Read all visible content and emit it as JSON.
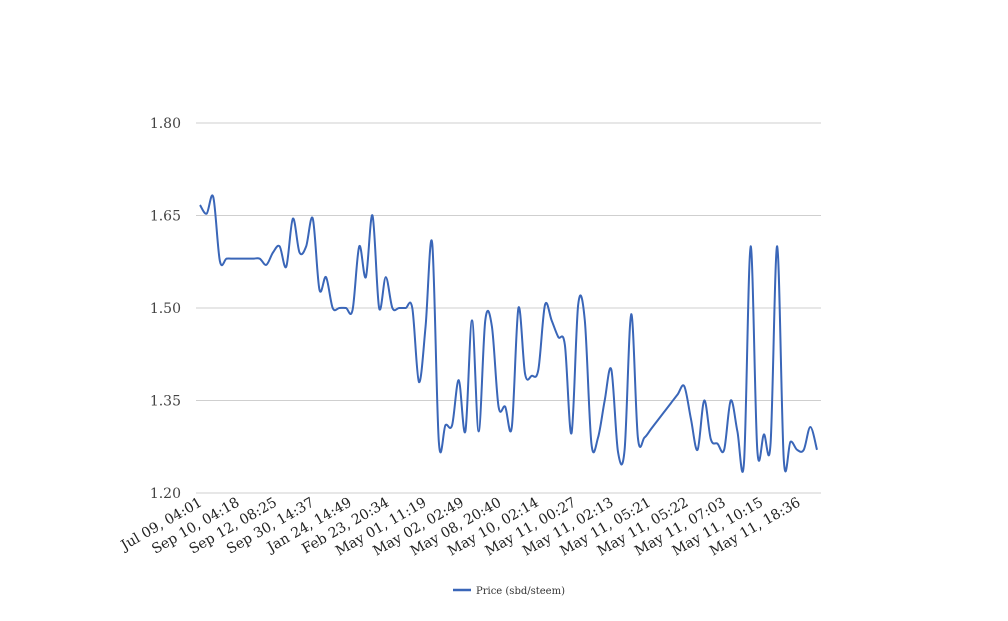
{
  "chart_data": {
    "type": "line",
    "title": "",
    "xlabel": "",
    "ylabel": "",
    "ylim": [
      1.2,
      1.8
    ],
    "yticks": [
      "1.20",
      "1.35",
      "1.50",
      "1.65",
      "1.80"
    ],
    "grid": true,
    "legend_position": "bottom",
    "x_tick_labels": [
      "Jul 09, 04:01",
      "Sep 10, 04:18",
      "Sep 12, 08:25",
      "Sep 30, 14:37",
      "Jan 24, 14:49",
      "Feb 23, 20:34",
      "May 01, 11:19",
      "May 02, 02:49",
      "May 08, 20:40",
      "May 10, 02:14",
      "May 11, 00:27",
      "May 11, 02:13",
      "May 11, 05:21",
      "May 11, 05:22",
      "May 11, 07:03",
      "May 11, 10:15",
      "May 11, 18:36"
    ],
    "series": [
      {
        "name": "Price (sbd/steem)",
        "color": "#3a66b8",
        "values": [
          1.667,
          1.653,
          1.68,
          1.576,
          1.58,
          1.58,
          1.58,
          1.58,
          1.58,
          1.58,
          1.57,
          1.59,
          1.6,
          1.567,
          1.645,
          1.59,
          1.6,
          1.645,
          1.53,
          1.55,
          1.5,
          1.5,
          1.5,
          1.497,
          1.6,
          1.55,
          1.65,
          1.5,
          1.55,
          1.5,
          1.5,
          1.5,
          1.5,
          1.38,
          1.47,
          1.605,
          1.283,
          1.31,
          1.31,
          1.383,
          1.3,
          1.48,
          1.3,
          1.48,
          1.47,
          1.34,
          1.34,
          1.307,
          1.5,
          1.393,
          1.39,
          1.4,
          1.505,
          1.48,
          1.453,
          1.44,
          1.297,
          1.505,
          1.48,
          1.28,
          1.29,
          1.35,
          1.4,
          1.267,
          1.27,
          1.49,
          1.29,
          1.29,
          1.304,
          1.318,
          1.332,
          1.346,
          1.36,
          1.373,
          1.32,
          1.27,
          1.35,
          1.287,
          1.28,
          1.27,
          1.35,
          1.3,
          1.25,
          1.6,
          1.27,
          1.295,
          1.28,
          1.6,
          1.253,
          1.283,
          1.27,
          1.27,
          1.307,
          1.27
        ]
      }
    ]
  }
}
